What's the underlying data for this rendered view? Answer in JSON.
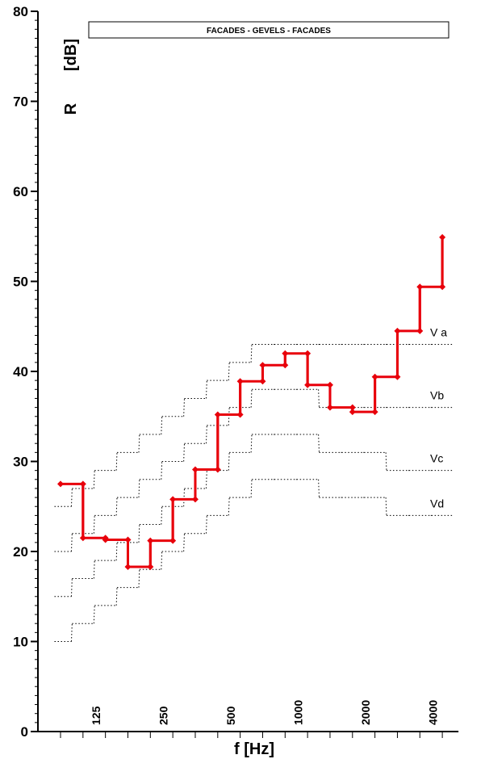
{
  "chart_data": {
    "type": "line",
    "title": "FACADES - GEVELS - FACADES",
    "xlabel": "f [Hz]",
    "ylabel_symbol": "R",
    "ylabel_unit": "[dB]",
    "x_scale": "log",
    "ylim": [
      0,
      80
    ],
    "y_ticks": [
      0,
      10,
      20,
      30,
      40,
      50,
      60,
      70,
      80
    ],
    "x_tick_labels": [
      "125",
      "250",
      "500",
      "1000",
      "2000",
      "4000"
    ],
    "x": [
      100,
      125,
      160,
      200,
      250,
      315,
      400,
      500,
      630,
      800,
      1000,
      1250,
      1600,
      2000,
      2500,
      3150,
      4000,
      5000
    ],
    "series": [
      {
        "values": [
          27.5,
          21.5,
          21.3,
          18.3,
          21.2,
          25.8,
          29.1,
          35.2,
          38.9,
          40.7,
          42.0,
          38.5,
          36.0,
          35.5,
          39.4,
          44.5,
          49.4,
          54.9
        ],
        "color": "#e8000b"
      },
      {
        "name": "V a",
        "values": [
          25,
          27,
          29,
          31,
          33,
          35,
          37,
          39,
          41,
          43,
          43,
          43,
          43,
          43,
          43,
          43,
          43,
          43
        ]
      },
      {
        "name": "Vb",
        "values": [
          20,
          22,
          24,
          26,
          28,
          30,
          32,
          34,
          36,
          38,
          38,
          38,
          36,
          36,
          36,
          36,
          36,
          36
        ]
      },
      {
        "name": "Vc",
        "values": [
          15,
          17,
          19,
          21,
          23,
          25,
          27,
          29,
          31,
          33,
          33,
          33,
          31,
          31,
          31,
          29,
          29,
          29
        ]
      },
      {
        "name": "Vd",
        "values": [
          10,
          12,
          14,
          16,
          18,
          20,
          22,
          24,
          26,
          28,
          28,
          28,
          26,
          26,
          26,
          24,
          24,
          24
        ]
      }
    ],
    "grid": false,
    "colors": {
      "measured": "#e8000b",
      "reference": "#000000"
    }
  }
}
